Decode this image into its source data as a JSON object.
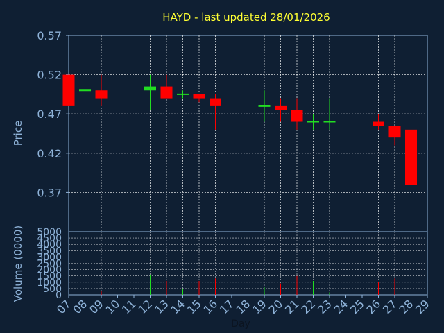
{
  "chart_data": {
    "type": "candlestick",
    "title": "HAYD - last updated 28/01/2026",
    "ylabel": "Price",
    "vol_ylabel": "Volume (0000)",
    "xlabel": "Day",
    "ylim": [
      0.32,
      0.57
    ],
    "yticks": [
      0.37,
      0.42,
      0.47,
      0.52,
      0.57
    ],
    "ytick_labels": [
      "0.37",
      "0.42",
      "0.47",
      "0.52",
      "0.57"
    ],
    "vol_ylim": [
      0,
      5000
    ],
    "vol_yticks": [
      0,
      500,
      1000,
      1500,
      2000,
      2500,
      3000,
      3500,
      4000,
      4500,
      5000
    ],
    "vol_ytick_labels": [
      "0",
      "500",
      "1000",
      "1500",
      "2000",
      "2500",
      "3000",
      "3500",
      "4000",
      "4500",
      "5000"
    ],
    "x_days": [
      7,
      8,
      9,
      10,
      11,
      12,
      13,
      14,
      15,
      16,
      17,
      18,
      19,
      20,
      21,
      22,
      23,
      24,
      25,
      26,
      27,
      28,
      29
    ],
    "x_labels": [
      "07",
      "08",
      "09",
      "10",
      "11",
      "12",
      "13",
      "14",
      "15",
      "16",
      "17",
      "18",
      "19",
      "20",
      "21",
      "22",
      "23",
      "24",
      "25",
      "26",
      "27",
      "28",
      "29"
    ],
    "x_grid_labels": [
      "08",
      "09",
      "12",
      "13",
      "14",
      "15",
      "16",
      "19",
      "20",
      "21",
      "22",
      "23",
      "26",
      "27",
      "28"
    ],
    "grid": true,
    "colors": {
      "background": "#0f1f33",
      "axes": "#8fb3d9",
      "title": "#ffff33",
      "up": "#22dd22",
      "down": "#ff0000",
      "grid": "#ffffff"
    },
    "candles": [
      {
        "day": "07",
        "open": 0.52,
        "high": 0.52,
        "low": 0.48,
        "close": 0.48
      },
      {
        "day": "08",
        "open": 0.5,
        "high": 0.52,
        "low": 0.48,
        "close": 0.5
      },
      {
        "day": "09",
        "open": 0.5,
        "high": 0.52,
        "low": 0.48,
        "close": 0.49
      },
      {
        "day": "12",
        "open": 0.5,
        "high": 0.52,
        "low": 0.475,
        "close": 0.505
      },
      {
        "day": "13",
        "open": 0.505,
        "high": 0.52,
        "low": 0.49,
        "close": 0.49
      },
      {
        "day": "14",
        "open": 0.495,
        "high": 0.5,
        "low": 0.49,
        "close": 0.495
      },
      {
        "day": "15",
        "open": 0.495,
        "high": 0.495,
        "low": 0.485,
        "close": 0.49
      },
      {
        "day": "16",
        "open": 0.49,
        "high": 0.495,
        "low": 0.45,
        "close": 0.48
      },
      {
        "day": "19",
        "open": 0.48,
        "high": 0.5,
        "low": 0.46,
        "close": 0.48
      },
      {
        "day": "20",
        "open": 0.48,
        "high": 0.49,
        "low": 0.46,
        "close": 0.475
      },
      {
        "day": "21",
        "open": 0.475,
        "high": 0.49,
        "low": 0.45,
        "close": 0.46
      },
      {
        "day": "22",
        "open": 0.46,
        "high": 0.47,
        "low": 0.45,
        "close": 0.46
      },
      {
        "day": "23",
        "open": 0.46,
        "high": 0.49,
        "low": 0.45,
        "close": 0.46
      },
      {
        "day": "26",
        "open": 0.46,
        "high": 0.47,
        "low": 0.45,
        "close": 0.455
      },
      {
        "day": "27",
        "open": 0.455,
        "high": 0.455,
        "low": 0.43,
        "close": 0.44
      },
      {
        "day": "28",
        "open": 0.45,
        "high": 0.45,
        "low": 0.35,
        "close": 0.38
      }
    ],
    "volume": [
      {
        "day": "07",
        "value": 0,
        "color": "down"
      },
      {
        "day": "08",
        "value": 700,
        "color": "up"
      },
      {
        "day": "09",
        "value": 300,
        "color": "down"
      },
      {
        "day": "12",
        "value": 1600,
        "color": "up"
      },
      {
        "day": "13",
        "value": 1100,
        "color": "down"
      },
      {
        "day": "14",
        "value": 500,
        "color": "up"
      },
      {
        "day": "15",
        "value": 1100,
        "color": "down"
      },
      {
        "day": "16",
        "value": 1300,
        "color": "down"
      },
      {
        "day": "19",
        "value": 600,
        "color": "up"
      },
      {
        "day": "20",
        "value": 900,
        "color": "down"
      },
      {
        "day": "21",
        "value": 1500,
        "color": "down"
      },
      {
        "day": "22",
        "value": 1100,
        "color": "up"
      },
      {
        "day": "23",
        "value": 200,
        "color": "up"
      },
      {
        "day": "26",
        "value": 1000,
        "color": "down"
      },
      {
        "day": "27",
        "value": 1300,
        "color": "down"
      },
      {
        "day": "28",
        "value": 5000,
        "color": "down"
      }
    ]
  }
}
